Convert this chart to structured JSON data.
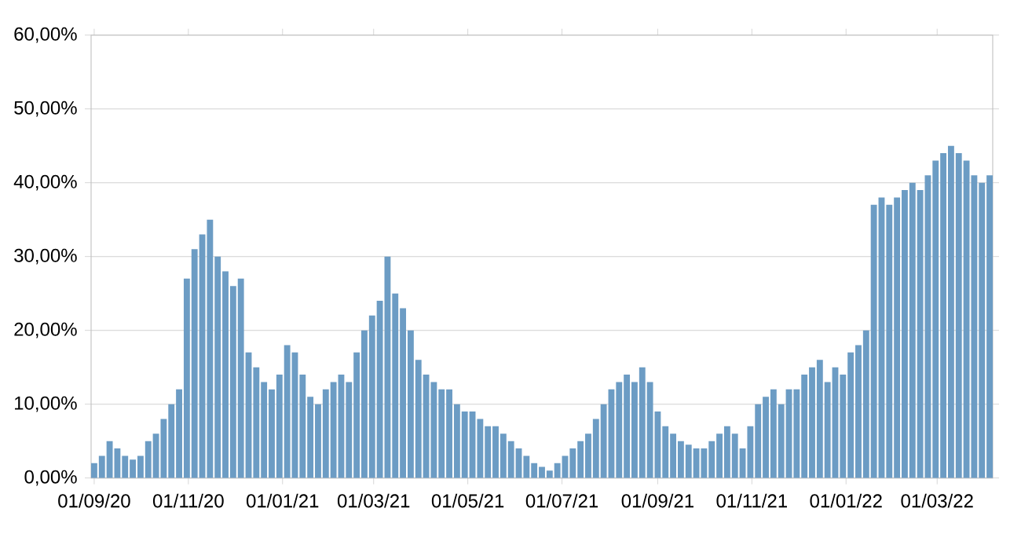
{
  "chart_data": {
    "type": "bar",
    "color": "#6c9cc4",
    "grid": "y",
    "x": [
      "2020-09-01",
      "2020-09-06",
      "2020-09-11",
      "2020-09-16",
      "2020-09-21",
      "2020-09-26",
      "2020-10-01",
      "2020-10-06",
      "2020-10-11",
      "2020-10-16",
      "2020-10-21",
      "2020-10-26",
      "2020-10-31",
      "2020-11-05",
      "2020-11-10",
      "2020-11-15",
      "2020-11-20",
      "2020-11-25",
      "2020-11-30",
      "2020-12-05",
      "2020-12-10",
      "2020-12-15",
      "2020-12-20",
      "2020-12-25",
      "2020-12-30",
      "2021-01-04",
      "2021-01-09",
      "2021-01-14",
      "2021-01-19",
      "2021-01-24",
      "2021-01-29",
      "2021-02-03",
      "2021-02-08",
      "2021-02-13",
      "2021-02-18",
      "2021-02-23",
      "2021-02-28",
      "2021-03-05",
      "2021-03-10",
      "2021-03-15",
      "2021-03-20",
      "2021-03-25",
      "2021-03-30",
      "2021-04-04",
      "2021-04-09",
      "2021-04-14",
      "2021-04-19",
      "2021-04-24",
      "2021-04-29",
      "2021-05-04",
      "2021-05-09",
      "2021-05-14",
      "2021-05-19",
      "2021-05-24",
      "2021-05-29",
      "2021-06-03",
      "2021-06-08",
      "2021-06-13",
      "2021-06-18",
      "2021-06-23",
      "2021-06-28",
      "2021-07-03",
      "2021-07-08",
      "2021-07-13",
      "2021-07-18",
      "2021-07-23",
      "2021-07-28",
      "2021-08-02",
      "2021-08-07",
      "2021-08-12",
      "2021-08-17",
      "2021-08-22",
      "2021-08-27",
      "2021-09-01",
      "2021-09-06",
      "2021-09-11",
      "2021-09-16",
      "2021-09-21",
      "2021-09-26",
      "2021-10-01",
      "2021-10-06",
      "2021-10-11",
      "2021-10-16",
      "2021-10-21",
      "2021-10-26",
      "2021-10-31",
      "2021-11-05",
      "2021-11-10",
      "2021-11-15",
      "2021-11-20",
      "2021-11-25",
      "2021-11-30",
      "2021-12-05",
      "2021-12-10",
      "2021-12-15",
      "2021-12-20",
      "2021-12-25",
      "2021-12-30",
      "2022-01-04",
      "2022-01-09",
      "2022-01-14",
      "2022-01-19",
      "2022-01-24",
      "2022-01-29",
      "2022-02-03",
      "2022-02-08",
      "2022-02-13",
      "2022-02-18",
      "2022-02-23",
      "2022-02-28",
      "2022-03-05",
      "2022-03-10",
      "2022-03-15",
      "2022-03-20",
      "2022-03-25",
      "2022-03-30",
      "2022-04-04"
    ],
    "values": [
      2,
      3,
      5,
      4,
      3,
      2.5,
      3,
      5,
      6,
      8,
      10,
      12,
      27,
      31,
      33,
      35,
      30,
      28,
      26,
      27,
      17,
      15,
      13,
      12,
      14,
      18,
      17,
      14,
      11,
      10,
      12,
      13,
      14,
      13,
      17,
      20,
      22,
      24,
      30,
      25,
      23,
      20,
      16,
      14,
      13,
      12,
      12,
      10,
      9,
      9,
      8,
      7,
      7,
      6,
      5,
      4,
      3,
      2,
      1.5,
      1,
      2,
      3,
      4,
      5,
      6,
      8,
      10,
      12,
      13,
      14,
      13,
      15,
      13,
      9,
      7,
      6,
      5,
      4.5,
      4,
      4,
      5,
      6,
      7,
      6,
      4,
      7,
      10,
      11,
      12,
      10,
      12,
      12,
      14,
      15,
      16,
      13,
      15,
      14,
      17,
      18,
      20,
      37,
      38,
      37,
      38,
      39,
      40,
      39,
      41,
      43,
      44,
      45,
      44,
      43,
      41,
      40,
      41
    ],
    "xlim": [
      "2020-08-30",
      "2022-04-06"
    ],
    "xticks": [
      {
        "value": "2020-09-01",
        "label": "01/09/20"
      },
      {
        "value": "2020-11-01",
        "label": "01/11/20"
      },
      {
        "value": "2021-01-01",
        "label": "01/01/21"
      },
      {
        "value": "2021-03-01",
        "label": "01/03/21"
      },
      {
        "value": "2021-05-01",
        "label": "01/05/21"
      },
      {
        "value": "2021-07-01",
        "label": "01/07/21"
      },
      {
        "value": "2021-09-01",
        "label": "01/09/21"
      },
      {
        "value": "2021-11-01",
        "label": "01/11/21"
      },
      {
        "value": "2022-01-01",
        "label": "01/01/22"
      },
      {
        "value": "2022-03-01",
        "label": "01/03/22"
      }
    ],
    "ylim": [
      0,
      60
    ],
    "yticks": [
      {
        "value": 0,
        "label": "0,00%"
      },
      {
        "value": 10,
        "label": "10,00%"
      },
      {
        "value": 20,
        "label": "20,00%"
      },
      {
        "value": 30,
        "label": "30,00%"
      },
      {
        "value": 40,
        "label": "40,00%"
      },
      {
        "value": 50,
        "label": "50,00%"
      },
      {
        "value": 60,
        "label": "60,00%"
      }
    ]
  }
}
